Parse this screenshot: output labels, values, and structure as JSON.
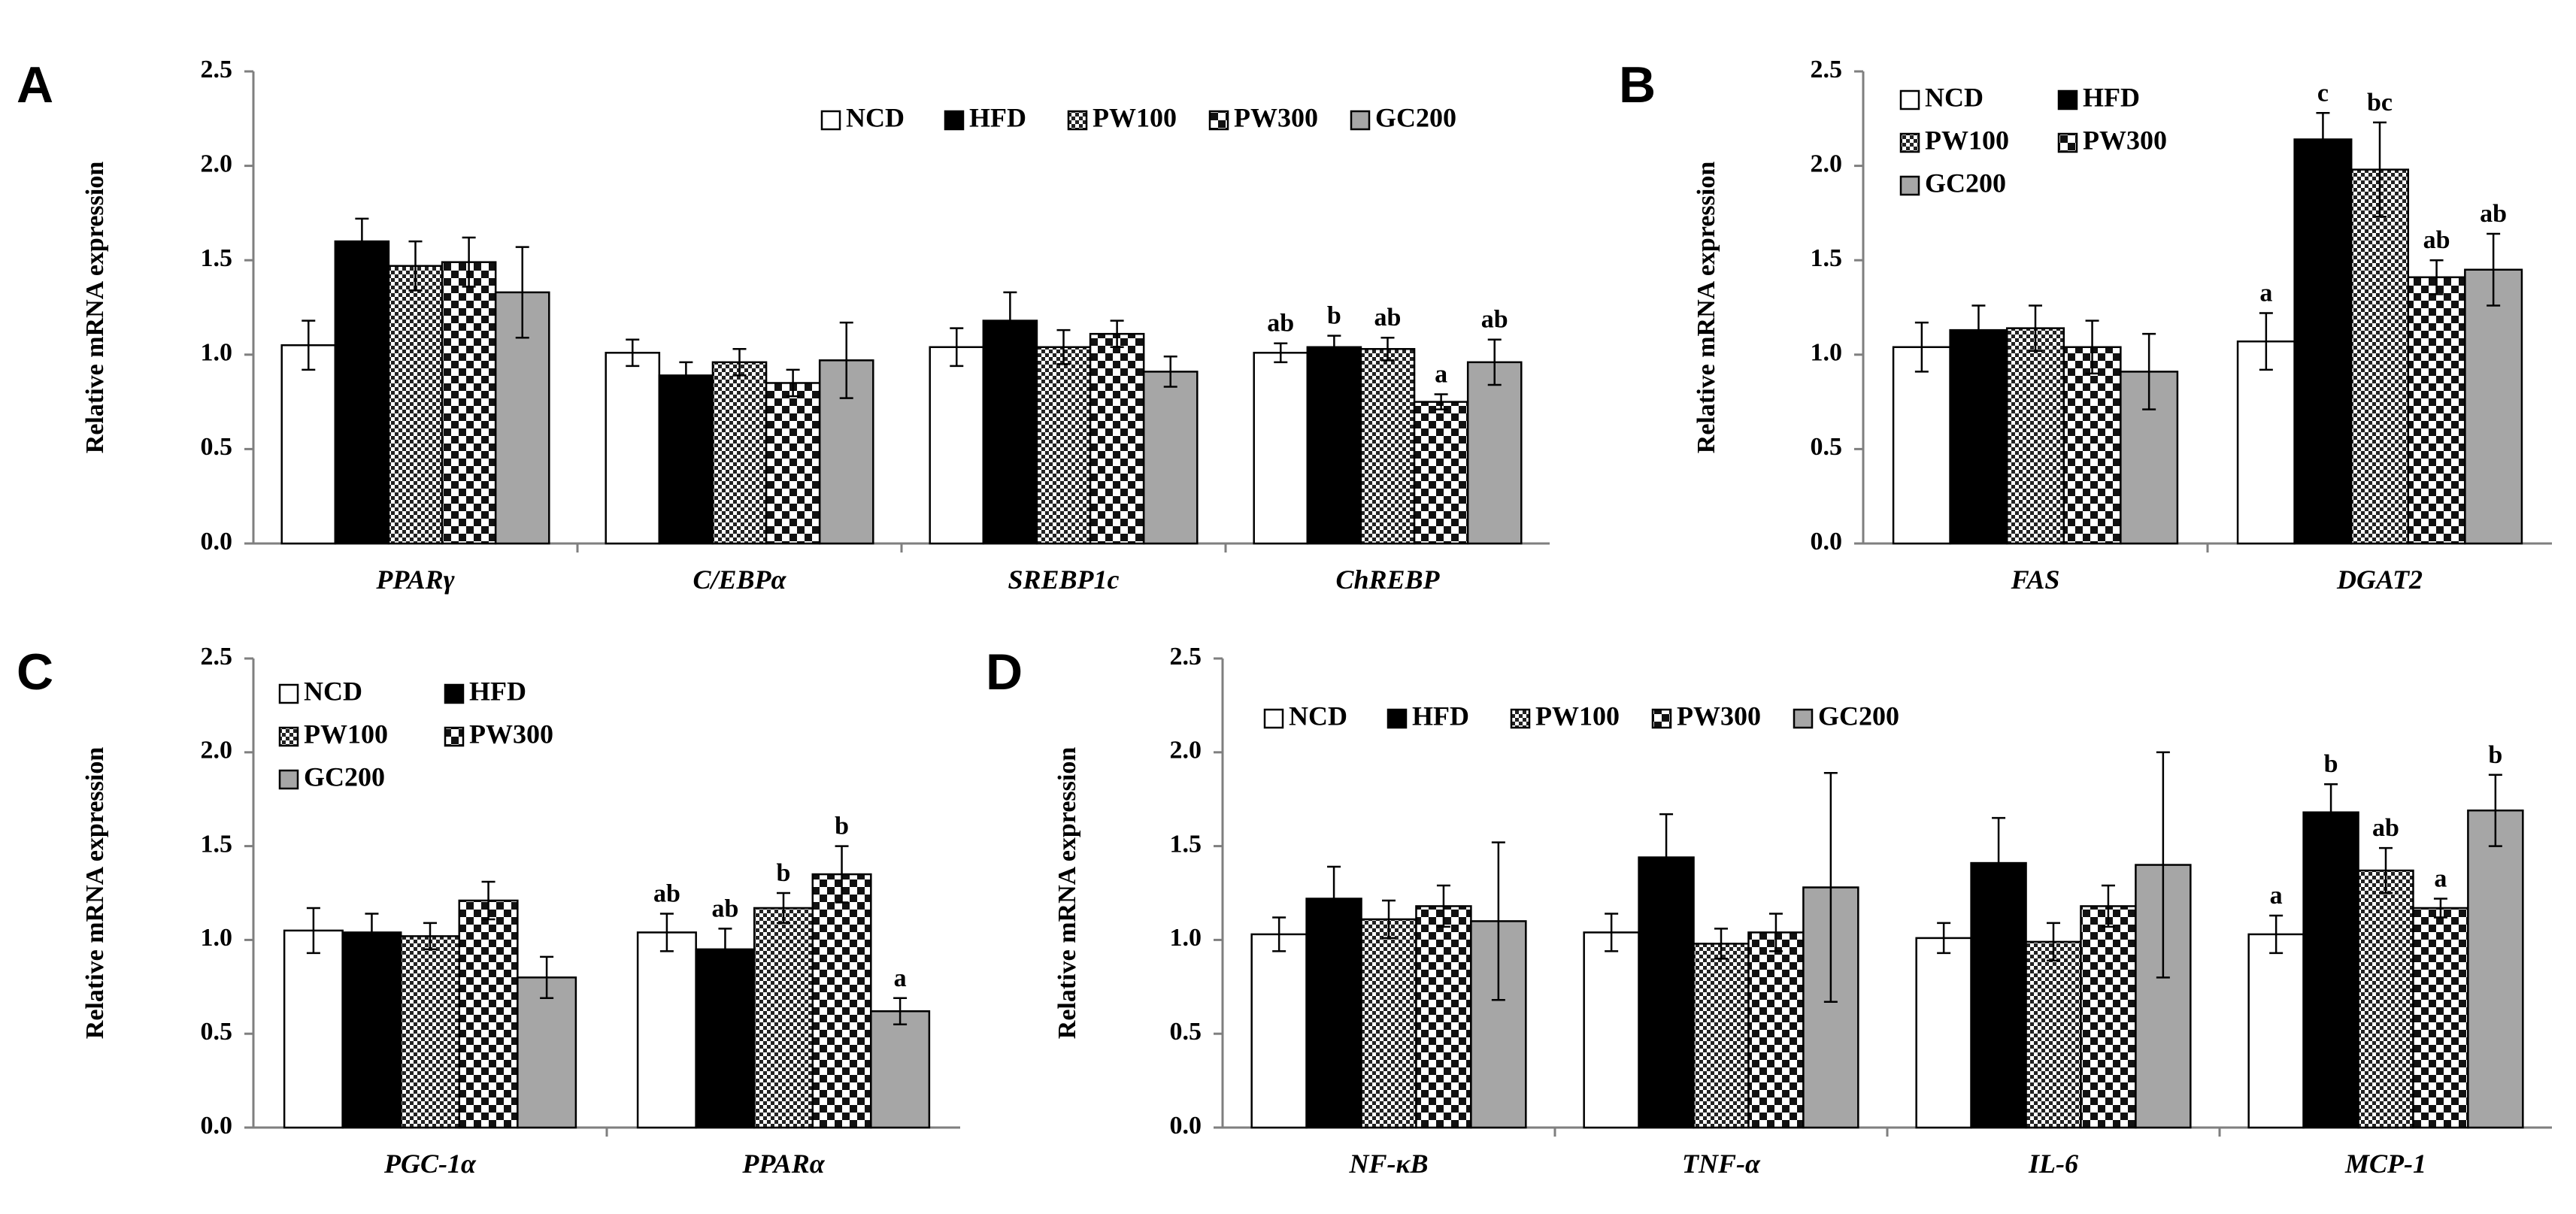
{
  "figure": {
    "colors": {
      "NCD": "#ffffff",
      "HFD": "#000000",
      "PW100": "pattern-fine-check",
      "PW300": "pattern-coarse-check",
      "GC200": "#a6a6a6",
      "axis": "#7f7f7f",
      "error_bar": "#000000"
    }
  },
  "chart_data": [
    {
      "panel": "A",
      "type": "bar",
      "ylabel": "Relative mRNA expression",
      "ylim": [
        0,
        2.5
      ],
      "yticks": [
        "0.0",
        "0.5",
        "1.0",
        "1.5",
        "2.0",
        "2.5"
      ],
      "legend": [
        "NCD",
        "HFD",
        "PW100",
        "PW300",
        "GC200"
      ],
      "legend_placement": "top-right",
      "legend_rows": [
        [
          "NCD",
          "HFD",
          "PW100",
          "PW300",
          "GC200"
        ]
      ],
      "categories": [
        "PPARγ",
        "C/EBPα",
        "SREBP1c",
        "ChREBP"
      ],
      "series": [
        {
          "name": "NCD",
          "values": [
            1.05,
            1.01,
            1.04,
            1.01
          ],
          "errors": [
            0.13,
            0.07,
            0.1,
            0.05
          ],
          "labels": [
            "",
            "",
            "",
            "ab"
          ]
        },
        {
          "name": "HFD",
          "values": [
            1.6,
            0.89,
            1.18,
            1.04
          ],
          "errors": [
            0.12,
            0.07,
            0.15,
            0.06
          ],
          "labels": [
            "",
            "",
            "",
            "b"
          ]
        },
        {
          "name": "PW100",
          "values": [
            1.47,
            0.96,
            1.04,
            1.03
          ],
          "errors": [
            0.13,
            0.07,
            0.09,
            0.06
          ],
          "labels": [
            "",
            "",
            "",
            "ab"
          ]
        },
        {
          "name": "PW300",
          "values": [
            1.49,
            0.85,
            1.11,
            0.75
          ],
          "errors": [
            0.13,
            0.07,
            0.07,
            0.04
          ],
          "labels": [
            "",
            "",
            "",
            "a"
          ]
        },
        {
          "name": "GC200",
          "values": [
            1.33,
            0.97,
            0.91,
            0.96
          ],
          "errors": [
            0.24,
            0.2,
            0.08,
            0.12
          ],
          "labels": [
            "",
            "",
            "",
            "ab"
          ]
        }
      ]
    },
    {
      "panel": "B",
      "type": "bar",
      "ylabel": "Relative mRNA expression",
      "ylim": [
        0,
        2.5
      ],
      "yticks": [
        "0.0",
        "0.5",
        "1.0",
        "1.5",
        "2.0",
        "2.5"
      ],
      "legend": [
        "NCD",
        "HFD",
        "PW100",
        "PW300",
        "GC200"
      ],
      "legend_placement": "top-left",
      "legend_rows": [
        [
          "NCD",
          "HFD"
        ],
        [
          "PW100",
          "PW300"
        ],
        [
          "GC200"
        ]
      ],
      "categories": [
        "FAS",
        "DGAT2"
      ],
      "series": [
        {
          "name": "NCD",
          "values": [
            1.04,
            1.07
          ],
          "errors": [
            0.13,
            0.15
          ],
          "labels": [
            "",
            "a"
          ]
        },
        {
          "name": "HFD",
          "values": [
            1.13,
            2.14
          ],
          "errors": [
            0.13,
            0.14
          ],
          "labels": [
            "",
            "c"
          ]
        },
        {
          "name": "PW100",
          "values": [
            1.14,
            1.98
          ],
          "errors": [
            0.12,
            0.25
          ],
          "labels": [
            "",
            "bc"
          ]
        },
        {
          "name": "PW300",
          "values": [
            1.04,
            1.41
          ],
          "errors": [
            0.14,
            0.09
          ],
          "labels": [
            "",
            "ab"
          ]
        },
        {
          "name": "GC200",
          "values": [
            0.91,
            1.45
          ],
          "errors": [
            0.2,
            0.19
          ],
          "labels": [
            "",
            "ab"
          ]
        }
      ]
    },
    {
      "panel": "C",
      "type": "bar",
      "ylabel": "Relative mRNA expression",
      "ylim": [
        0,
        2.5
      ],
      "yticks": [
        "0.0",
        "0.5",
        "1.0",
        "1.5",
        "2.0",
        "2.5"
      ],
      "legend": [
        "NCD",
        "HFD",
        "PW100",
        "PW300",
        "GC200"
      ],
      "legend_placement": "top-left",
      "legend_rows": [
        [
          "NCD",
          "HFD"
        ],
        [
          "PW100",
          "PW300"
        ],
        [
          "GC200"
        ]
      ],
      "categories": [
        "PGC-1α",
        "PPARα"
      ],
      "series": [
        {
          "name": "NCD",
          "values": [
            1.05,
            1.04
          ],
          "errors": [
            0.12,
            0.1
          ],
          "labels": [
            "",
            "ab"
          ]
        },
        {
          "name": "HFD",
          "values": [
            1.04,
            0.95
          ],
          "errors": [
            0.1,
            0.11
          ],
          "labels": [
            "",
            "ab"
          ]
        },
        {
          "name": "PW100",
          "values": [
            1.02,
            1.17
          ],
          "errors": [
            0.07,
            0.08
          ],
          "labels": [
            "",
            "b"
          ]
        },
        {
          "name": "PW300",
          "values": [
            1.21,
            1.35
          ],
          "errors": [
            0.1,
            0.15
          ],
          "labels": [
            "",
            "b"
          ]
        },
        {
          "name": "GC200",
          "values": [
            0.8,
            0.62
          ],
          "errors": [
            0.11,
            0.07
          ],
          "labels": [
            "",
            "a"
          ]
        }
      ]
    },
    {
      "panel": "D",
      "type": "bar",
      "ylabel": "Relative mRNA expression",
      "ylim": [
        0,
        2.5
      ],
      "yticks": [
        "0.0",
        "0.5",
        "1.0",
        "1.5",
        "2.0",
        "2.5"
      ],
      "legend": [
        "NCD",
        "HFD",
        "PW100",
        "PW300",
        "GC200"
      ],
      "legend_placement": "top-left",
      "legend_rows": [
        [
          "NCD",
          "HFD",
          "PW100",
          "PW300",
          "GC200"
        ]
      ],
      "categories": [
        "NF-κB",
        "TNF-α",
        "IL-6",
        "MCP-1"
      ],
      "series": [
        {
          "name": "NCD",
          "values": [
            1.03,
            1.04,
            1.01,
            1.03
          ],
          "errors": [
            0.09,
            0.1,
            0.08,
            0.1
          ],
          "labels": [
            "",
            "",
            "",
            "a"
          ]
        },
        {
          "name": "HFD",
          "values": [
            1.22,
            1.44,
            1.41,
            1.68
          ],
          "errors": [
            0.17,
            0.23,
            0.24,
            0.15
          ],
          "labels": [
            "",
            "",
            "",
            "b"
          ]
        },
        {
          "name": "PW100",
          "values": [
            1.11,
            0.98,
            0.99,
            1.37
          ],
          "errors": [
            0.1,
            0.08,
            0.1,
            0.12
          ],
          "labels": [
            "",
            "",
            "",
            "ab"
          ]
        },
        {
          "name": "PW300",
          "values": [
            1.18,
            1.04,
            1.18,
            1.17
          ],
          "errors": [
            0.11,
            0.1,
            0.11,
            0.05
          ],
          "labels": [
            "",
            "",
            "",
            "a"
          ]
        },
        {
          "name": "GC200",
          "values": [
            1.1,
            1.28,
            1.4,
            1.69
          ],
          "errors": [
            0.42,
            0.61,
            0.6,
            0.19
          ],
          "labels": [
            "",
            "",
            "",
            "b"
          ]
        }
      ]
    }
  ]
}
